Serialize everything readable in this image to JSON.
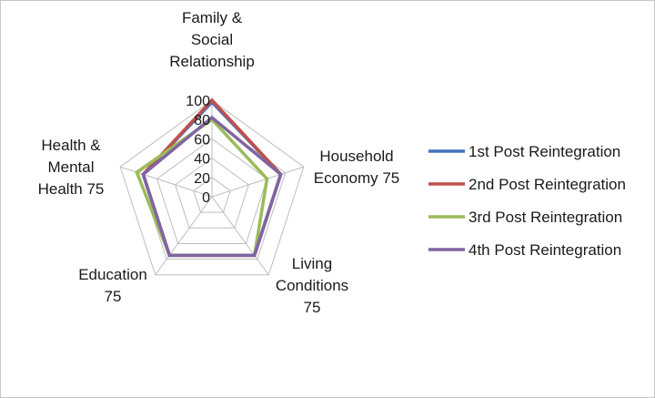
{
  "chart_data": {
    "type": "radar",
    "axes": [
      {
        "label_lines": [
          "Family &",
          "Social",
          "Relationship"
        ]
      },
      {
        "label_lines": [
          "Household",
          "Economy 75"
        ]
      },
      {
        "label_lines": [
          "Living",
          "Conditions",
          "75"
        ]
      },
      {
        "label_lines": [
          "Education",
          "75"
        ]
      },
      {
        "label_lines": [
          "Health &",
          "Mental",
          "Health 75"
        ]
      }
    ],
    "ticks": [
      "100",
      "80",
      "60",
      "40",
      "20",
      "0"
    ],
    "tick_values": [
      100,
      80,
      60,
      40,
      20,
      0
    ],
    "rlim": [
      0,
      100
    ],
    "grid": true,
    "legend_position": "right",
    "series": [
      {
        "name": "1st Post Reintegration",
        "color": "#4472C4",
        "values": [
          98,
          75,
          75,
          75,
          75
        ]
      },
      {
        "name": "2nd Post Reintegration",
        "color": "#C0504D",
        "values": [
          100,
          75,
          75,
          75,
          75
        ]
      },
      {
        "name": "3rd Post Reintegration",
        "color": "#9BBB59",
        "values": [
          80,
          60,
          75,
          75,
          82
        ]
      },
      {
        "name": "4th Post Reintegration",
        "color": "#8064A2",
        "values": [
          82,
          75,
          75,
          75,
          75
        ]
      }
    ]
  }
}
